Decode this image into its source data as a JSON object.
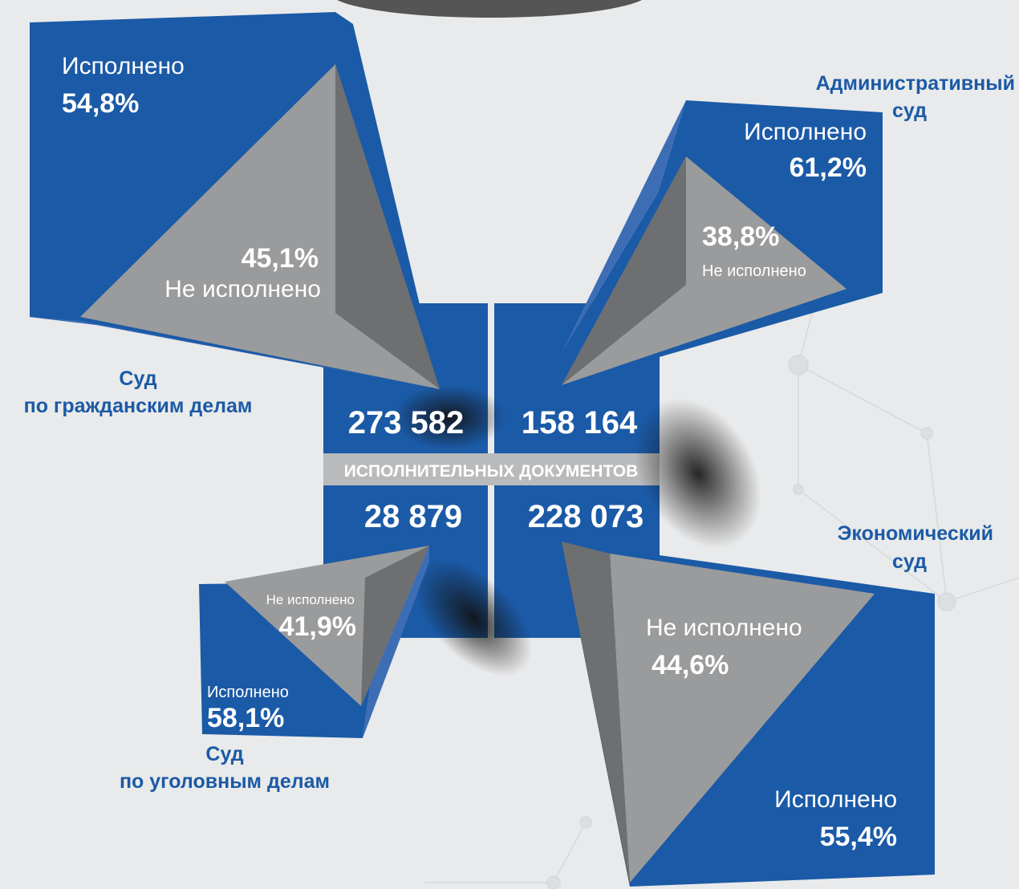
{
  "center_label": "ИСПОЛНИТЕЛЬНЫХ ДОКУМЕНТОВ",
  "panels": [
    {
      "court": [
        "Суд",
        "по гражданским делам"
      ],
      "total": "273 582",
      "done_label": "Исполнено",
      "done": "54,8%",
      "undone_label": "Не исполнено",
      "undone": "45,1%"
    },
    {
      "court": [
        "Административный",
        "суд"
      ],
      "total": "158 164",
      "done_label": "Исполнено",
      "done": "61,2%",
      "undone_label": "Не исполнено",
      "undone": "38,8%"
    },
    {
      "court": [
        "Суд",
        "по уголовным делам"
      ],
      "total": "28 879",
      "done_label": "Исполнено",
      "done": "58,1%",
      "undone_label": "Не исполнено",
      "undone": "41,9%"
    },
    {
      "court": [
        "Экономический",
        "суд"
      ],
      "total": "228 073",
      "done_label": "Исполнено",
      "done": "55,4%",
      "undone_label": "Не исполнено",
      "undone": "44,6%"
    }
  ]
}
